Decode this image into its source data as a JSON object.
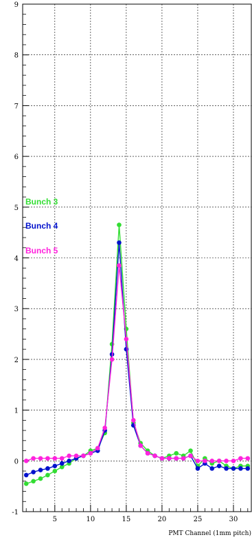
{
  "chart_data": {
    "type": "line",
    "xlabel": "PMT Channel (1mm pitch)",
    "ylabel": "",
    "xlim": [
      0.5,
      32.5
    ],
    "ylim": [
      -1,
      9
    ],
    "x_ticks": [
      5,
      10,
      15,
      20,
      25,
      30
    ],
    "x_tick_labels": [
      "5",
      "10",
      "15",
      "20",
      "25",
      "30"
    ],
    "y_ticks": [
      -1,
      0,
      1,
      2,
      3,
      4,
      5,
      6,
      7,
      8,
      9
    ],
    "y_tick_labels": [
      "-1",
      "0",
      "1",
      "2",
      "3",
      "4",
      "5",
      "6",
      "7",
      "8",
      "9"
    ],
    "grid": true,
    "legend_position": "left",
    "x": [
      1,
      2,
      3,
      4,
      5,
      6,
      7,
      8,
      9,
      10,
      11,
      12,
      13,
      14,
      15,
      16,
      17,
      18,
      19,
      20,
      21,
      22,
      23,
      24,
      25,
      26,
      27,
      28,
      29,
      30,
      31,
      32
    ],
    "series": [
      {
        "name": "Bunch 3",
        "color": "#33dd33",
        "values": [
          -0.45,
          -0.4,
          -0.35,
          -0.28,
          -0.2,
          -0.12,
          -0.05,
          0.05,
          0.1,
          0.2,
          0.25,
          0.55,
          2.3,
          4.65,
          2.6,
          0.75,
          0.35,
          0.2,
          0.1,
          0.05,
          0.1,
          0.15,
          0.1,
          0.2,
          -0.1,
          0.05,
          -0.05,
          0.0,
          -0.1,
          -0.15,
          -0.1,
          -0.1
        ]
      },
      {
        "name": "Bunch 4",
        "color": "#0011cc",
        "values": [
          -0.28,
          -0.22,
          -0.18,
          -0.15,
          -0.1,
          -0.05,
          0.0,
          0.05,
          0.1,
          0.15,
          0.2,
          0.6,
          2.1,
          4.3,
          2.2,
          0.7,
          0.3,
          0.15,
          0.1,
          0.05,
          0.05,
          0.05,
          0.05,
          0.1,
          -0.15,
          -0.05,
          -0.15,
          -0.1,
          -0.15,
          -0.15,
          -0.15,
          -0.15
        ]
      },
      {
        "name": "Bunch 5",
        "color": "#ff22dd",
        "values": [
          0.0,
          0.05,
          0.05,
          0.05,
          0.05,
          0.05,
          0.1,
          0.1,
          0.1,
          0.15,
          0.25,
          0.65,
          2.0,
          3.85,
          2.4,
          0.8,
          0.3,
          0.15,
          0.1,
          0.05,
          0.05,
          0.05,
          0.05,
          0.1,
          0.0,
          0.0,
          0.0,
          0.0,
          0.0,
          0.0,
          0.05,
          0.05
        ]
      }
    ]
  }
}
